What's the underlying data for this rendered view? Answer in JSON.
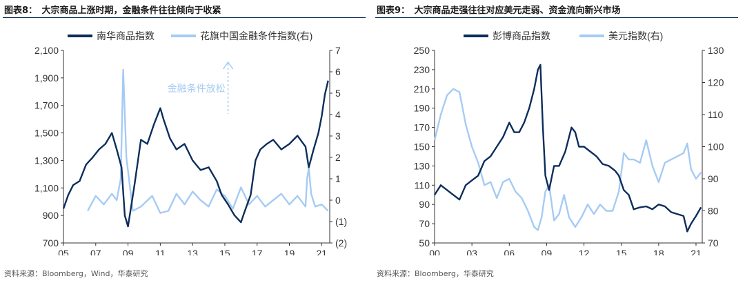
{
  "source_labels": {
    "c1": "资料来源：Bloomberg，Wind，华泰研究",
    "c2": "资料来源：Bloomberg，华泰研究"
  },
  "chart_data": [
    {
      "type": "line",
      "title": "图表8：　大宗商品上涨时期，金融条件往往倾向于收紧",
      "x_ticks": [
        "05",
        "07",
        "09",
        "11",
        "13",
        "15",
        "17",
        "19",
        "21"
      ],
      "x_range": [
        2005,
        2021.5
      ],
      "y_left": {
        "ticks": [
          "2,100",
          "1,900",
          "1,700",
          "1,500",
          "1,300",
          "1,100",
          "900",
          "700"
        ],
        "range": [
          700,
          2100
        ]
      },
      "y_right": {
        "ticks": [
          "7",
          "6",
          "5",
          "4",
          "3",
          "2",
          "1",
          "0",
          "(1)",
          "(2)"
        ],
        "range": [
          -2,
          7
        ]
      },
      "annotation": {
        "text": "金融条件放松",
        "arrow": true
      },
      "colors": {
        "s1": "#0c2d5c",
        "s2": "#a6cbf3"
      },
      "series": [
        {
          "name": "南华商品指数",
          "axis": "left",
          "x": [
            2005.0,
            2005.3,
            2005.6,
            2006.0,
            2006.4,
            2006.8,
            2007.2,
            2007.6,
            2008.0,
            2008.3,
            2008.6,
            2008.8,
            2009.0,
            2009.4,
            2009.8,
            2010.2,
            2010.6,
            2011.0,
            2011.2,
            2011.6,
            2012.0,
            2012.5,
            2013.0,
            2013.5,
            2014.0,
            2014.5,
            2014.8,
            2015.2,
            2015.6,
            2016.0,
            2016.2,
            2016.6,
            2016.9,
            2017.2,
            2017.6,
            2018.0,
            2018.5,
            2019.0,
            2019.5,
            2020.0,
            2020.2,
            2020.5,
            2020.8,
            2021.0,
            2021.2,
            2021.4
          ],
          "values": [
            950,
            1050,
            1120,
            1150,
            1270,
            1320,
            1380,
            1420,
            1500,
            1380,
            1250,
            900,
            820,
            1120,
            1450,
            1420,
            1560,
            1680,
            1600,
            1460,
            1380,
            1420,
            1300,
            1230,
            1250,
            1150,
            1050,
            980,
            900,
            850,
            920,
            1050,
            1300,
            1380,
            1420,
            1450,
            1380,
            1420,
            1480,
            1400,
            1250,
            1380,
            1500,
            1620,
            1780,
            1880
          ]
        },
        {
          "name": "花旗中国金融条件指数(右)",
          "axis": "right",
          "x": [
            2006.5,
            2007.0,
            2007.5,
            2008.0,
            2008.3,
            2008.55,
            2008.7,
            2008.9,
            2009.3,
            2009.8,
            2010.5,
            2011.0,
            2011.5,
            2012.0,
            2012.5,
            2013.0,
            2013.5,
            2014.0,
            2014.5,
            2015.0,
            2015.5,
            2016.0,
            2016.5,
            2017.0,
            2017.5,
            2018.0,
            2018.5,
            2019.0,
            2019.5,
            2020.0,
            2020.1,
            2020.2,
            2020.35,
            2020.6,
            2021.0,
            2021.4
          ],
          "values": [
            -0.5,
            0.2,
            -0.2,
            0.3,
            0.0,
            1.0,
            6.1,
            2.0,
            -0.5,
            -0.3,
            0.2,
            -0.6,
            -0.5,
            0.3,
            -0.2,
            0.4,
            0.0,
            -0.3,
            0.5,
            0.2,
            -0.4,
            0.6,
            -0.2,
            0.2,
            -0.3,
            0.0,
            0.3,
            -0.2,
            0.2,
            -0.3,
            1.0,
            1.5,
            0.3,
            -0.3,
            -0.2,
            -0.5
          ]
        }
      ]
    },
    {
      "type": "line",
      "title": "图表9：　大宗商品走强往往对应美元走弱、资金流向新兴市场",
      "x_ticks": [
        "00",
        "03",
        "06",
        "09",
        "12",
        "15",
        "18",
        "21"
      ],
      "x_range": [
        2000,
        2021.5
      ],
      "y_left": {
        "ticks": [
          "250",
          "230",
          "210",
          "190",
          "170",
          "150",
          "130",
          "110",
          "90",
          "70",
          "50"
        ],
        "range": [
          50,
          250
        ]
      },
      "y_right": {
        "ticks": [
          "130",
          "120",
          "110",
          "100",
          "90",
          "80",
          "70"
        ],
        "range": [
          70,
          130
        ]
      },
      "colors": {
        "s1": "#0c2d5c",
        "s2": "#a6cbf3"
      },
      "series": [
        {
          "name": "彭博商品指数",
          "axis": "left",
          "x": [
            2000.0,
            2000.5,
            2001.0,
            2001.5,
            2002.0,
            2002.5,
            2003.0,
            2003.5,
            2004.0,
            2004.5,
            2005.0,
            2005.5,
            2006.0,
            2006.4,
            2006.8,
            2007.2,
            2007.6,
            2008.0,
            2008.3,
            2008.5,
            2008.7,
            2008.9,
            2009.2,
            2009.6,
            2010.0,
            2010.5,
            2011.0,
            2011.3,
            2011.6,
            2012.0,
            2012.5,
            2013.0,
            2013.5,
            2014.0,
            2014.5,
            2014.8,
            2015.2,
            2015.6,
            2016.0,
            2016.5,
            2017.0,
            2017.5,
            2018.0,
            2018.5,
            2019.0,
            2019.5,
            2020.0,
            2020.3,
            2020.6,
            2021.0,
            2021.4
          ],
          "values": [
            100,
            110,
            105,
            100,
            95,
            110,
            115,
            120,
            135,
            140,
            150,
            160,
            175,
            165,
            165,
            175,
            190,
            210,
            230,
            235,
            170,
            120,
            105,
            130,
            130,
            145,
            170,
            165,
            150,
            150,
            145,
            140,
            132,
            130,
            125,
            120,
            105,
            100,
            85,
            87,
            88,
            85,
            90,
            88,
            82,
            80,
            78,
            62,
            70,
            78,
            87
          ]
        },
        {
          "name": "美元指数(右)",
          "axis": "right",
          "x": [
            2000.0,
            2000.5,
            2001.0,
            2001.5,
            2002.0,
            2002.5,
            2003.0,
            2003.5,
            2004.0,
            2004.5,
            2005.0,
            2005.5,
            2006.0,
            2006.5,
            2007.0,
            2007.5,
            2008.0,
            2008.3,
            2008.6,
            2008.9,
            2009.2,
            2009.6,
            2010.0,
            2010.4,
            2010.8,
            2011.3,
            2011.8,
            2012.3,
            2012.8,
            2013.3,
            2013.8,
            2014.3,
            2014.8,
            2015.2,
            2015.6,
            2016.0,
            2016.5,
            2017.0,
            2017.5,
            2018.0,
            2018.5,
            2019.0,
            2019.5,
            2020.0,
            2020.3,
            2020.6,
            2021.0,
            2021.4
          ],
          "values": [
            102,
            110,
            116,
            118,
            117,
            107,
            100,
            95,
            88,
            89,
            84,
            89,
            90,
            86,
            84,
            80,
            75,
            74,
            78,
            86,
            88,
            77,
            79,
            85,
            78,
            75,
            78,
            82,
            79,
            82,
            80,
            80,
            86,
            98,
            96,
            96,
            95,
            102,
            94,
            89,
            95,
            96,
            97,
            98,
            101,
            93,
            90,
            92
          ]
        }
      ]
    }
  ]
}
